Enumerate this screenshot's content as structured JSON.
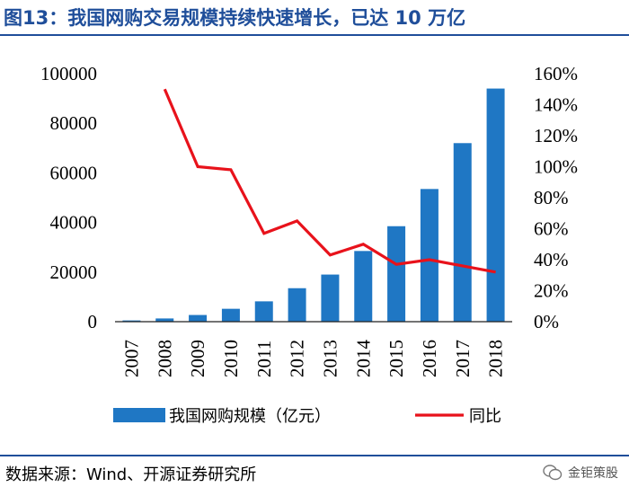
{
  "title": "图13：我国网购交易规模持续快速增长，已达 10 万亿",
  "source": "数据来源：Wind、开源证券研究所",
  "watermark": "金钜策股",
  "colors": {
    "bar": "#1f77c4",
    "line": "#e8121b",
    "title": "#1f4e9a"
  },
  "chart_data": {
    "type": "bar",
    "categories": [
      "2007",
      "2008",
      "2009",
      "2010",
      "2011",
      "2012",
      "2013",
      "2014",
      "2015",
      "2016",
      "2017",
      "2018"
    ],
    "series": [
      {
        "name": "我国网购规模（亿元）",
        "type": "bar",
        "axis": "left",
        "values": [
          500,
          1300,
          2700,
          5200,
          8200,
          13500,
          19000,
          28500,
          38500,
          53500,
          72000,
          94000
        ]
      },
      {
        "name": "同比",
        "type": "line",
        "axis": "right",
        "unit": "%",
        "values": [
          null,
          150,
          100,
          98,
          57,
          65,
          43,
          50,
          37,
          40,
          36,
          32
        ]
      }
    ],
    "left_axis": {
      "ylim": [
        0,
        100000
      ],
      "ticks": [
        "0",
        "20000",
        "40000",
        "60000",
        "80000",
        "100000"
      ]
    },
    "right_axis": {
      "ylim": [
        0,
        160
      ],
      "ticks": [
        "0%",
        "20%",
        "40%",
        "60%",
        "80%",
        "100%",
        "120%",
        "140%",
        "160%"
      ]
    },
    "legend_position": "bottom",
    "grid": false
  }
}
